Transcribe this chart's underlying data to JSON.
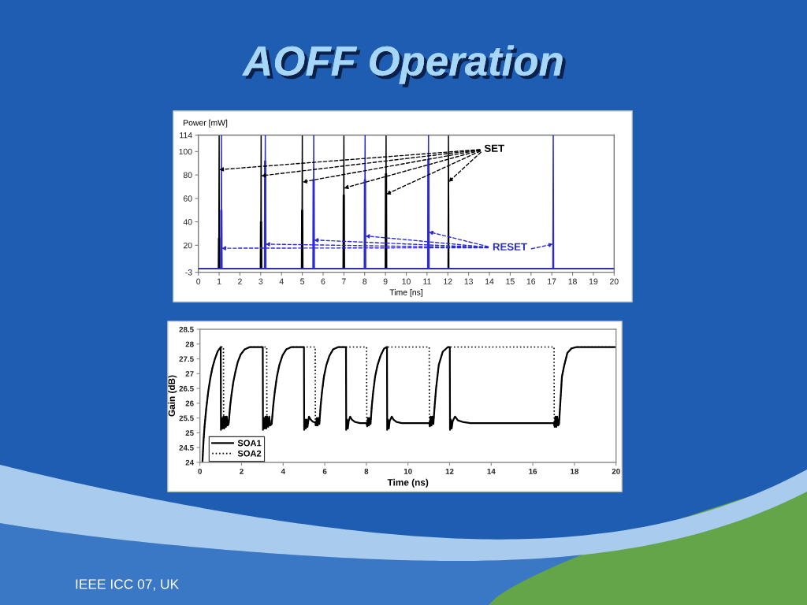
{
  "chart_data": [
    {
      "type": "line",
      "title": "AOFF Operation",
      "xlabel": "Time [ns]",
      "ylabel": "Power [mW]",
      "xlim": [
        0,
        20
      ],
      "xticks": [
        0,
        1,
        2,
        3,
        4,
        5,
        6,
        7,
        8,
        9,
        10,
        11,
        12,
        13,
        14,
        15,
        16,
        17,
        18,
        19,
        20
      ],
      "ylim": [
        -3,
        114
      ],
      "yticks": [
        -3,
        20,
        40,
        60,
        80,
        100,
        114
      ],
      "series": [
        {
          "color": "#000000",
          "x": [
            0,
            0.96,
            0.97,
            0.98,
            1.0,
            1.01,
            1.02,
            1.03,
            2.98,
            2.99,
            3.0,
            3.02,
            3.03,
            3.04,
            3.05,
            4.96,
            4.97,
            4.98,
            5.0,
            5.01,
            5.02,
            5.03,
            6.96,
            6.97,
            6.98,
            7.0,
            7.01,
            7.02,
            7.03,
            8.99,
            9.0,
            9.01,
            9.03,
            9.04,
            9.05,
            9.06,
            12.01,
            12.03,
            12.05,
            20
          ],
          "values": [
            0,
            0,
            26,
            0,
            114,
            0,
            26,
            0,
            0,
            40,
            0,
            114,
            0,
            40,
            0,
            0,
            50,
            0,
            114,
            0,
            50,
            0,
            0,
            63,
            0,
            114,
            0,
            63,
            0,
            0,
            81,
            0,
            114,
            0,
            81,
            0,
            0,
            114,
            0,
            0
          ]
        },
        {
          "color": "#2b2bd0",
          "x": [
            0,
            1.07,
            1.08,
            1.09,
            1.11,
            1.12,
            1.13,
            1.14,
            3.18,
            3.19,
            3.2,
            3.22,
            3.23,
            3.24,
            3.25,
            5.51,
            5.52,
            5.53,
            5.55,
            5.56,
            5.57,
            5.58,
            7.98,
            7.99,
            8.0,
            8.02,
            8.03,
            8.04,
            8.05,
            11.03,
            11.04,
            11.05,
            11.07,
            11.08,
            11.09,
            11.1,
            17.05,
            17.07,
            17.09,
            20
          ],
          "values": [
            0,
            0,
            50,
            0,
            114,
            0,
            50,
            0,
            0,
            92,
            0,
            114,
            0,
            92,
            0,
            0,
            76,
            0,
            114,
            0,
            76,
            0,
            0,
            76,
            0,
            114,
            0,
            76,
            0,
            0,
            93,
            0,
            114,
            0,
            93,
            0,
            0,
            114,
            0,
            0
          ]
        }
      ],
      "annotations": [
        {
          "text": "SET",
          "x": 12.03,
          "y": 74
        },
        {
          "text": "RESET",
          "x": 17.07,
          "y": 21
        }
      ]
    },
    {
      "type": "line",
      "xlabel": "Time (ns)",
      "ylabel": "Gain (dB)",
      "xlim": [
        0,
        20
      ],
      "xticks": [
        0,
        2,
        4,
        6,
        8,
        10,
        12,
        14,
        16,
        18,
        20
      ],
      "ylim": [
        24,
        28.5
      ],
      "yticks": [
        24,
        24.5,
        25,
        25.5,
        26,
        26.5,
        27,
        27.5,
        28,
        28.5
      ],
      "legend": "bottom left",
      "series": [
        {
          "name": "SOA1",
          "color": "#000000",
          "line_style": "solid",
          "x": [
            0.12,
            0.17,
            0.22,
            0.3,
            0.4,
            0.5,
            0.6,
            0.72,
            0.85,
            1.0,
            1.01,
            1.05,
            1.09,
            1.13,
            1.17,
            1.21,
            1.25,
            1.29,
            1.33,
            1.38,
            1.45,
            1.52,
            1.6,
            1.7,
            1.82,
            1.96,
            2.15,
            2.4,
            3.02,
            3.03,
            3.07,
            3.11,
            3.15,
            3.19,
            3.23,
            3.28,
            3.33,
            3.38,
            3.45,
            3.52,
            3.6,
            3.7,
            3.82,
            3.97,
            4.15,
            4.4,
            5.0,
            5.01,
            5.05,
            5.09,
            5.13,
            5.17,
            5.24,
            5.32,
            5.42,
            5.54,
            5.58,
            5.62,
            5.66,
            5.7,
            5.74,
            5.8,
            5.87,
            5.96,
            6.08,
            6.22,
            6.4,
            6.65,
            7.02,
            7.03,
            7.07,
            7.11,
            7.15,
            7.22,
            7.3,
            7.45,
            7.7,
            8.01,
            8.04,
            8.08,
            8.12,
            8.16,
            8.2,
            8.26,
            8.33,
            8.42,
            8.54,
            8.68,
            8.85,
            8.99,
            9.0,
            9.04,
            9.08,
            9.12,
            9.22,
            9.3,
            9.45,
            9.7,
            11.02,
            11.05,
            11.09,
            11.13,
            11.17,
            11.22,
            11.28,
            11.35,
            11.48,
            11.67,
            11.92,
            12.01,
            12.02,
            12.06,
            12.1,
            12.15,
            12.26,
            12.4,
            12.62,
            13.0,
            17.02,
            17.05,
            17.09,
            17.13,
            17.17,
            17.22,
            17.26,
            17.32,
            17.4,
            17.5,
            17.66,
            17.85,
            18.1,
            20
          ],
          "values": [
            24,
            24.7,
            25.2,
            25.8,
            26.4,
            26.85,
            27.2,
            27.5,
            27.75,
            27.9,
            25.1,
            25.5,
            25.15,
            25.55,
            25.15,
            25.55,
            25.2,
            25.55,
            25.25,
            25.3,
            25.9,
            26.3,
            26.7,
            27.05,
            27.4,
            27.65,
            27.82,
            27.9,
            27.9,
            25.1,
            25.5,
            25.15,
            25.55,
            25.15,
            25.55,
            25.2,
            25.55,
            25.25,
            25.3,
            25.9,
            26.4,
            26.9,
            27.3,
            27.62,
            27.82,
            27.9,
            27.9,
            25.1,
            25.45,
            25.15,
            25.45,
            25.2,
            25.55,
            25.45,
            25.38,
            25.35,
            25.25,
            25.5,
            25.25,
            25.5,
            25.3,
            25.9,
            26.4,
            26.9,
            27.3,
            27.6,
            27.82,
            27.9,
            27.9,
            25.1,
            25.45,
            25.15,
            25.4,
            25.55,
            25.45,
            25.37,
            25.33,
            25.33,
            25.22,
            25.5,
            25.25,
            25.5,
            25.3,
            25.9,
            26.4,
            26.9,
            27.3,
            27.6,
            27.85,
            27.9,
            25.1,
            25.45,
            25.15,
            25.4,
            25.55,
            25.45,
            25.37,
            25.33,
            25.33,
            25.22,
            25.55,
            25.25,
            25.55,
            25.3,
            25.9,
            26.5,
            27.3,
            27.74,
            27.9,
            27.9,
            25.1,
            25.45,
            25.15,
            25.4,
            25.55,
            25.42,
            25.37,
            25.33,
            25.33,
            25.2,
            25.55,
            25.2,
            25.55,
            25.25,
            25.3,
            26.0,
            26.9,
            27.25,
            27.7,
            27.85,
            27.9,
            27.9
          ]
        },
        {
          "name": "SOA2",
          "color": "#000000",
          "line_style": "dotted",
          "x": [
            0.12,
            0.17,
            0.22,
            0.3,
            0.4,
            0.5,
            0.6,
            0.72,
            0.85,
            1.0,
            1.13,
            1.14,
            1.18,
            1.22,
            1.27,
            1.32,
            1.38,
            1.45,
            1.52,
            1.6,
            1.7,
            1.82,
            1.96,
            2.15,
            2.4,
            3.21,
            3.22,
            3.26,
            3.3,
            3.35,
            3.4,
            3.45,
            3.52,
            3.6,
            3.7,
            3.82,
            3.97,
            4.15,
            4.4,
            5.54,
            5.55,
            5.62,
            5.66,
            5.7,
            5.74,
            5.8,
            5.87,
            5.96,
            6.08,
            6.22,
            6.4,
            6.65,
            8.01,
            8.02,
            8.08,
            8.12,
            8.16,
            8.2,
            8.26,
            8.33,
            8.42,
            8.54,
            8.68,
            8.85,
            8.99,
            11.02,
            11.03,
            11.09,
            11.13,
            11.17,
            11.22,
            11.28,
            11.35,
            11.48,
            11.67,
            11.92,
            17.02,
            17.03,
            17.09,
            17.13,
            17.17,
            17.22,
            17.26,
            17.32,
            17.4,
            17.5,
            17.66,
            17.85,
            18.1,
            20
          ],
          "values": [
            24,
            24.7,
            25.2,
            25.8,
            26.4,
            26.85,
            27.2,
            27.5,
            27.75,
            27.9,
            27.9,
            25.2,
            25.5,
            25.2,
            25.5,
            25.25,
            25.3,
            25.9,
            26.3,
            26.7,
            27.05,
            27.4,
            27.65,
            27.82,
            27.9,
            27.9,
            25.2,
            25.5,
            25.2,
            25.5,
            25.25,
            25.3,
            25.9,
            26.4,
            26.9,
            27.3,
            27.62,
            27.82,
            27.9,
            27.9,
            25.25,
            25.5,
            25.25,
            25.5,
            25.3,
            25.9,
            26.4,
            26.9,
            27.3,
            27.6,
            27.82,
            27.9,
            27.9,
            25.25,
            25.5,
            25.25,
            25.5,
            25.3,
            25.9,
            26.4,
            26.9,
            27.3,
            27.6,
            27.85,
            27.9,
            27.9,
            25.25,
            25.55,
            25.25,
            25.55,
            25.3,
            25.9,
            26.5,
            27.3,
            27.74,
            27.9,
            27.9,
            25.25,
            25.55,
            25.2,
            25.55,
            25.25,
            25.3,
            26.0,
            26.9,
            27.25,
            27.7,
            27.85,
            27.9,
            27.9
          ]
        }
      ],
      "annotations": [
        "IEEE ICC 07, UK"
      ]
    }
  ]
}
